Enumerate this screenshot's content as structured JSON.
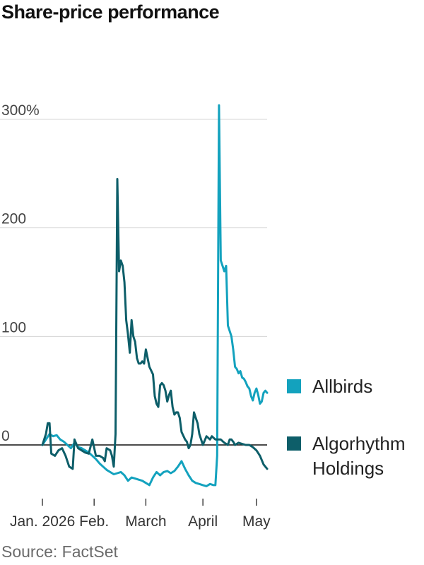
{
  "title": "Share-price performance",
  "source": "Source: FactSet",
  "chart_data": {
    "type": "line",
    "ylim": [
      -55,
      315
    ],
    "xlim": [
      0,
      126
    ],
    "yticks": [
      {
        "value": 300,
        "label": "300%"
      },
      {
        "value": 200,
        "label": "200"
      },
      {
        "value": 100,
        "label": "100"
      },
      {
        "value": 0,
        "label": "0"
      }
    ],
    "xticks": [
      {
        "pos": 0,
        "label": "Jan. 2026",
        "anchor": "start"
      },
      {
        "pos": 29,
        "label": "Feb.",
        "anchor": "middle"
      },
      {
        "pos": 58,
        "label": "March",
        "anchor": "middle"
      },
      {
        "pos": 90,
        "label": "April",
        "anchor": "middle"
      },
      {
        "pos": 120,
        "label": "May",
        "anchor": "middle"
      }
    ],
    "grid": true,
    "legend": "right",
    "series": [
      {
        "name": "Allbirds",
        "color": "#13a2be",
        "points": [
          [
            0,
            0
          ],
          [
            2,
            5
          ],
          [
            4,
            10
          ],
          [
            6,
            8
          ],
          [
            8,
            9
          ],
          [
            10,
            5
          ],
          [
            12,
            3
          ],
          [
            14,
            0
          ],
          [
            16,
            -3
          ],
          [
            18,
            2
          ],
          [
            20,
            -2
          ],
          [
            22,
            -3
          ],
          [
            24,
            -5
          ],
          [
            26,
            -7
          ],
          [
            28,
            -10
          ],
          [
            30,
            -13
          ],
          [
            32,
            -17
          ],
          [
            34,
            -20
          ],
          [
            36,
            -23
          ],
          [
            38,
            -25
          ],
          [
            40,
            -27
          ],
          [
            42,
            -26
          ],
          [
            44,
            -25
          ],
          [
            46,
            -28
          ],
          [
            48,
            -33
          ],
          [
            50,
            -30
          ],
          [
            52,
            -31
          ],
          [
            54,
            -32
          ],
          [
            56,
            -33
          ],
          [
            58,
            -35
          ],
          [
            60,
            -37
          ],
          [
            62,
            -30
          ],
          [
            64,
            -25
          ],
          [
            66,
            -28
          ],
          [
            68,
            -25
          ],
          [
            70,
            -24
          ],
          [
            72,
            -26
          ],
          [
            74,
            -24
          ],
          [
            76,
            -20
          ],
          [
            78,
            -15
          ],
          [
            80,
            -22
          ],
          [
            82,
            -28
          ],
          [
            84,
            -33
          ],
          [
            86,
            -35
          ],
          [
            88,
            -36
          ],
          [
            90,
            -37
          ],
          [
            92,
            -38
          ],
          [
            94,
            -36
          ],
          [
            96,
            -37
          ],
          [
            97,
            -37
          ],
          [
            98,
            -10
          ],
          [
            99,
            313
          ],
          [
            100,
            170
          ],
          [
            101,
            165
          ],
          [
            102,
            160
          ],
          [
            103,
            165
          ],
          [
            104,
            110
          ],
          [
            105,
            105
          ],
          [
            106,
            100
          ],
          [
            107,
            88
          ],
          [
            108,
            72
          ],
          [
            109,
            70
          ],
          [
            110,
            66
          ],
          [
            111,
            68
          ],
          [
            112,
            62
          ],
          [
            113,
            61
          ],
          [
            114,
            58
          ],
          [
            115,
            54
          ],
          [
            116,
            52
          ],
          [
            117,
            45
          ],
          [
            118,
            41
          ],
          [
            119,
            48
          ],
          [
            120,
            52
          ],
          [
            121,
            46
          ],
          [
            122,
            38
          ],
          [
            123,
            40
          ],
          [
            124,
            48
          ],
          [
            125,
            50
          ],
          [
            126,
            48
          ]
        ]
      },
      {
        "name": "Algorhythm Holdings",
        "color": "#0d5e69",
        "points": [
          [
            0,
            0
          ],
          [
            2,
            10
          ],
          [
            3,
            20
          ],
          [
            4,
            20
          ],
          [
            5,
            -8
          ],
          [
            7,
            -10
          ],
          [
            9,
            -5
          ],
          [
            11,
            -3
          ],
          [
            13,
            -10
          ],
          [
            15,
            -20
          ],
          [
            17,
            -22
          ],
          [
            18,
            5
          ],
          [
            20,
            -3
          ],
          [
            22,
            -5
          ],
          [
            24,
            -7
          ],
          [
            26,
            -8
          ],
          [
            28,
            5
          ],
          [
            30,
            -10
          ],
          [
            32,
            -10
          ],
          [
            34,
            -12
          ],
          [
            35,
            -15
          ],
          [
            36,
            -3
          ],
          [
            38,
            -5
          ],
          [
            39,
            -10
          ],
          [
            40,
            -20
          ],
          [
            41,
            10
          ],
          [
            42,
            245
          ],
          [
            43,
            160
          ],
          [
            44,
            170
          ],
          [
            45,
            165
          ],
          [
            46,
            150
          ],
          [
            47,
            115
          ],
          [
            48,
            102
          ],
          [
            49,
            85
          ],
          [
            50,
            115
          ],
          [
            51,
            100
          ],
          [
            52,
            95
          ],
          [
            53,
            80
          ],
          [
            54,
            75
          ],
          [
            55,
            75
          ],
          [
            56,
            77
          ],
          [
            57,
            75
          ],
          [
            58,
            88
          ],
          [
            59,
            80
          ],
          [
            60,
            72
          ],
          [
            62,
            65
          ],
          [
            63,
            45
          ],
          [
            64,
            38
          ],
          [
            65,
            35
          ],
          [
            66,
            55
          ],
          [
            67,
            57
          ],
          [
            68,
            55
          ],
          [
            69,
            50
          ],
          [
            70,
            40
          ],
          [
            71,
            46
          ],
          [
            72,
            50
          ],
          [
            73,
            35
          ],
          [
            74,
            28
          ],
          [
            75,
            30
          ],
          [
            76,
            30
          ],
          [
            77,
            25
          ],
          [
            78,
            12
          ],
          [
            80,
            5
          ],
          [
            81,
            3
          ],
          [
            82,
            -3
          ],
          [
            83,
            0
          ],
          [
            84,
            10
          ],
          [
            85,
            30
          ],
          [
            86,
            25
          ],
          [
            87,
            20
          ],
          [
            88,
            10
          ],
          [
            89,
            5
          ],
          [
            90,
            0
          ],
          [
            92,
            8
          ],
          [
            94,
            5
          ],
          [
            95,
            8
          ],
          [
            97,
            5
          ],
          [
            98,
            5
          ],
          [
            100,
            5
          ],
          [
            102,
            2
          ],
          [
            104,
            0
          ],
          [
            105,
            5
          ],
          [
            106,
            5
          ],
          [
            107,
            3
          ],
          [
            108,
            0
          ],
          [
            110,
            2
          ],
          [
            112,
            1
          ],
          [
            114,
            0
          ],
          [
            116,
            0
          ],
          [
            118,
            -2
          ],
          [
            120,
            -5
          ],
          [
            122,
            -10
          ],
          [
            124,
            -18
          ],
          [
            126,
            -22
          ]
        ]
      }
    ]
  }
}
